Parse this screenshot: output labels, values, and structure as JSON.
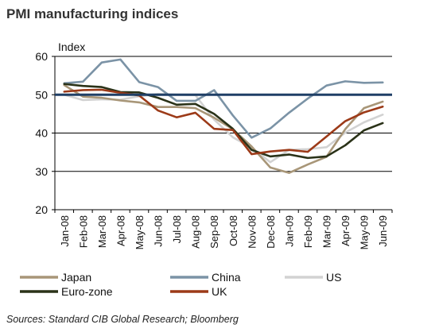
{
  "title": "PMI manufacturing indices",
  "source": "Sources: Standard CIB Global Research; Bloomberg",
  "chart_data": {
    "type": "line",
    "title": "PMI manufacturing indices",
    "ylabel": "Index",
    "xlabel": "",
    "ylim": [
      20,
      60
    ],
    "yticks": [
      20,
      30,
      40,
      50,
      60
    ],
    "grid": true,
    "legend_position": "bottom",
    "categories": [
      "Jan-08",
      "Feb-08",
      "Mar-08",
      "Apr-08",
      "May-08",
      "Jun-08",
      "Jul-08",
      "Aug-08",
      "Sep-08",
      "Oct-08",
      "Nov-08",
      "Dec-08",
      "Jan-09",
      "Feb-09",
      "Mar-09",
      "Apr-09",
      "May-09",
      "Jun-09"
    ],
    "reference_line": {
      "value": 50,
      "color": "#1f3f66"
    },
    "series": [
      {
        "name": "Japan",
        "color": "#a89678",
        "values": [
          52.5,
          49.5,
          49.2,
          48.5,
          48.0,
          46.8,
          46.8,
          46.5,
          44.0,
          41.0,
          36.5,
          31.0,
          29.6,
          31.8,
          33.8,
          41.0,
          46.5,
          48.2
        ]
      },
      {
        "name": "China",
        "color": "#7b93a6",
        "values": [
          53.0,
          53.4,
          58.4,
          59.2,
          53.3,
          52.0,
          48.4,
          48.4,
          51.2,
          44.6,
          38.8,
          41.2,
          45.3,
          49.0,
          52.4,
          53.5,
          53.1,
          53.2
        ]
      },
      {
        "name": "US",
        "color": "#d2d2d2",
        "values": [
          50.0,
          48.6,
          48.8,
          48.7,
          49.6,
          50.2,
          50.0,
          49.9,
          43.5,
          38.9,
          36.2,
          32.4,
          35.6,
          35.8,
          36.3,
          40.1,
          42.8,
          44.8
        ]
      },
      {
        "name": "Euro-zone",
        "color": "#2a3218",
        "values": [
          52.8,
          52.3,
          52.0,
          50.7,
          50.6,
          49.2,
          47.4,
          47.6,
          45.0,
          41.1,
          35.6,
          33.9,
          34.4,
          33.5,
          33.9,
          36.8,
          40.7,
          42.6
        ]
      },
      {
        "name": "UK",
        "color": "#9c3a18",
        "values": [
          50.8,
          51.2,
          51.3,
          50.5,
          49.8,
          45.9,
          44.1,
          45.3,
          41.1,
          40.8,
          34.5,
          35.2,
          35.6,
          35.1,
          39.1,
          43.1,
          45.4,
          46.9
        ]
      }
    ]
  }
}
